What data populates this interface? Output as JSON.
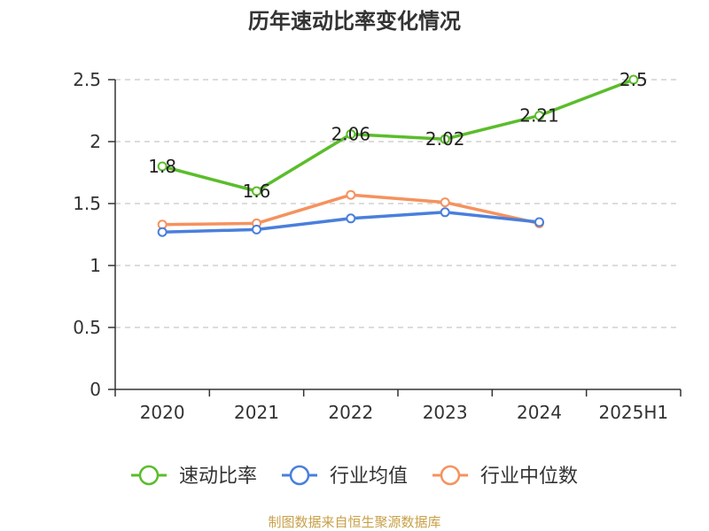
{
  "source_text": "制图数据来自恒生聚源数据库",
  "chart_data": {
    "type": "line",
    "title": "历年速动比率变化情况",
    "categories": [
      "2020",
      "2021",
      "2022",
      "2023",
      "2024",
      "2025H1"
    ],
    "y_ticks": [
      "0",
      "0.5",
      "1",
      "1.5",
      "2",
      "2.5"
    ],
    "ylim": [
      0,
      2.5
    ],
    "grid": true,
    "legend_position": "bottom",
    "series": [
      {
        "name": "速动比率",
        "color": "#5bbd2b",
        "values": [
          1.8,
          1.6,
          2.06,
          2.02,
          2.21,
          2.5
        ],
        "labels": [
          "1.8",
          "1.6",
          "2.06",
          "2.02",
          "2.21",
          "2.5"
        ]
      },
      {
        "name": "行业均值",
        "color": "#4a7fdc",
        "values": [
          1.27,
          1.29,
          1.38,
          1.43,
          1.35,
          null
        ]
      },
      {
        "name": "行业中位数",
        "color": "#f5925e",
        "values": [
          1.33,
          1.34,
          1.57,
          1.51,
          1.34,
          null
        ]
      }
    ]
  }
}
